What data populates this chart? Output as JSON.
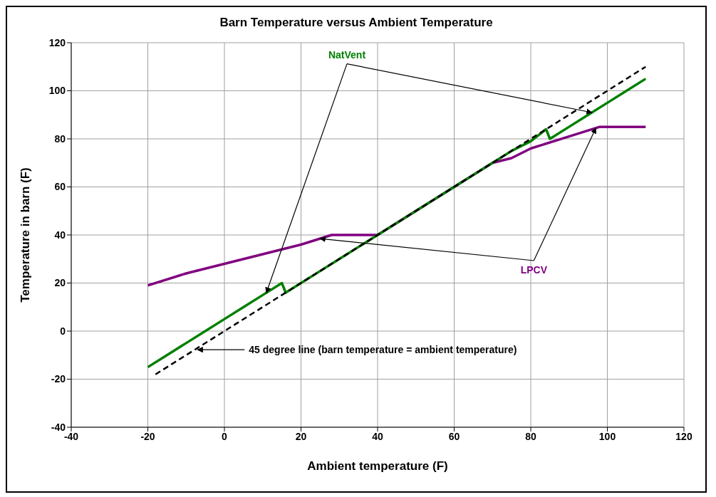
{
  "chart_data": {
    "type": "line",
    "title": "Barn Temperature versus Ambient Temperature",
    "xlabel": "Ambient temperature (F)",
    "ylabel": "Temperature in barn (F)",
    "xlim": [
      -40,
      120
    ],
    "xticks": [
      -40,
      -20,
      0,
      20,
      40,
      60,
      80,
      100,
      120
    ],
    "ylim": [
      -40,
      120
    ],
    "yticks": [
      -40,
      -20,
      0,
      20,
      40,
      60,
      80,
      100,
      120
    ],
    "grid": true,
    "series": [
      {
        "name": "LPCV",
        "color": "#800080",
        "line_style": "solid",
        "x": [
          -20,
          -10,
          0,
          10,
          20,
          28,
          40,
          50,
          60,
          70,
          75,
          80,
          90,
          98,
          110
        ],
        "values": [
          19,
          24,
          28,
          32,
          36,
          40,
          40,
          50,
          60,
          70,
          72,
          76,
          81,
          85,
          85
        ]
      },
      {
        "name": "NatVent",
        "color": "#008000",
        "line_style": "solid",
        "x": [
          -20,
          -15,
          -10,
          -5,
          0,
          5,
          10,
          15,
          16,
          20,
          25,
          30,
          35,
          40,
          45,
          50,
          55,
          60,
          65,
          70,
          75,
          80,
          84,
          85,
          90,
          95,
          100,
          105,
          110
        ],
        "values": [
          -15,
          -10,
          -5,
          0,
          5,
          10,
          15,
          20,
          16,
          20,
          25,
          30,
          35,
          40,
          45,
          50,
          55,
          60,
          65,
          70,
          75,
          79,
          84,
          80,
          85,
          90,
          95,
          100,
          105
        ]
      },
      {
        "color": "#000000",
        "line_style": "dashed",
        "x": [
          -18,
          110
        ],
        "values": [
          -18,
          110
        ]
      }
    ],
    "annotations": [
      "45 degree line (barn temperature = ambient temperature)"
    ]
  }
}
